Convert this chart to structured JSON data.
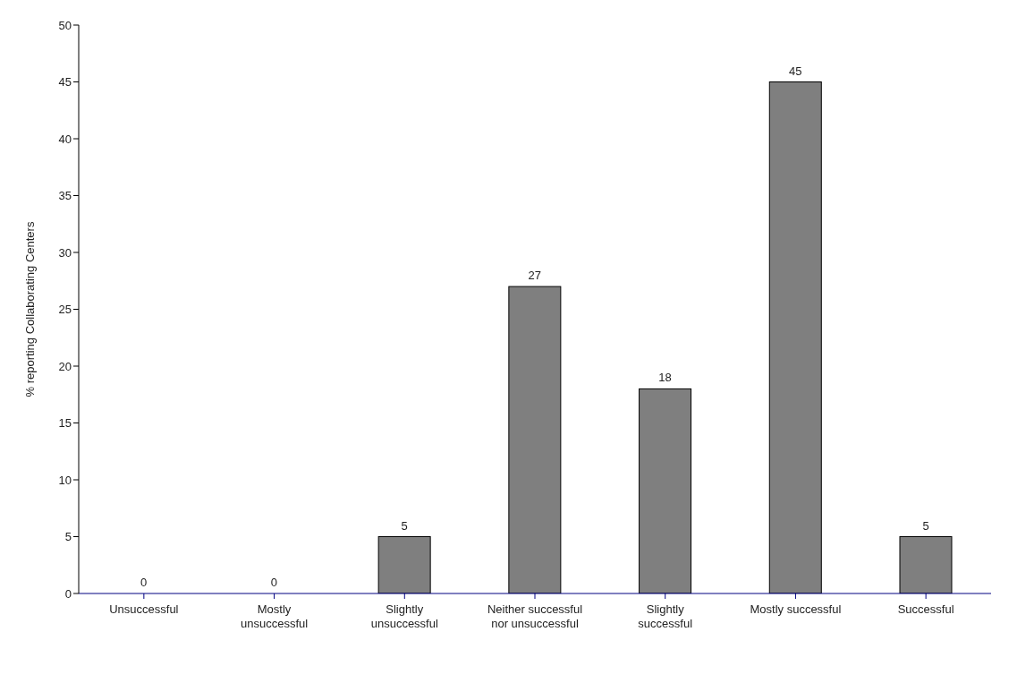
{
  "chart_data": {
    "type": "bar",
    "ylabel": "% reporting Collaborating Centers",
    "categories": [
      "Unsuccessful",
      "Mostly unsuccessful",
      "Slightly unsuccessful",
      "Neither successful nor unsuccessful",
      "Slightly successful",
      "Mostly successful",
      "Successful"
    ],
    "values": [
      0,
      0,
      5,
      27,
      18,
      45,
      5
    ],
    "color": "#7f7f7f",
    "ylim": [
      0,
      50
    ],
    "yticks": [
      0,
      5,
      10,
      15,
      20,
      25,
      30,
      35,
      40,
      45,
      50
    ],
    "grid": false,
    "data_labels": true
  }
}
